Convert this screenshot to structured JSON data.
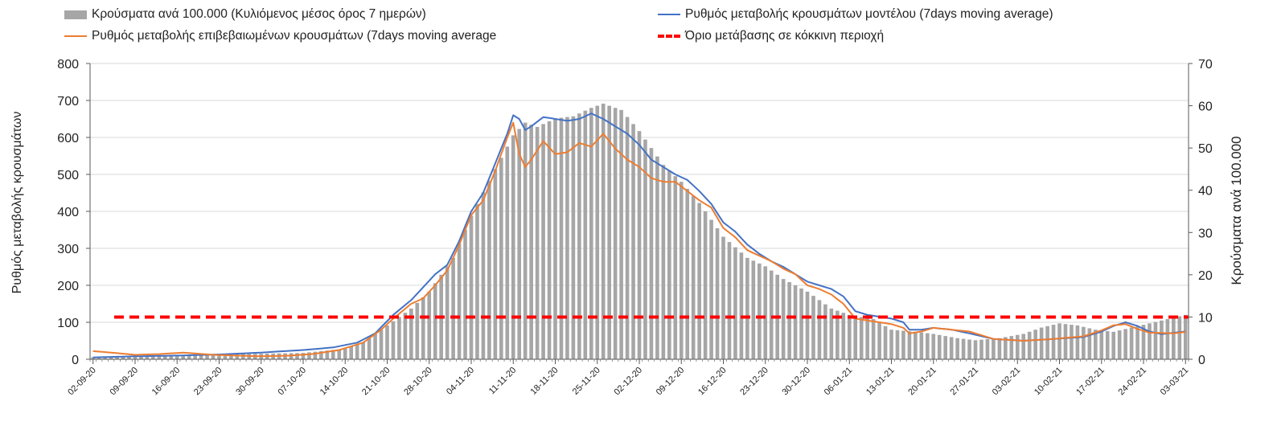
{
  "legend": {
    "bars": "Κρούσματα ανά 100.000 (Κυλιόμενος μέσος όρος 7 ημερών)",
    "model": "Ρυθμός μεταβολής κρουσμάτων μοντέλου (7days moving average)",
    "confirmed": "Ρυθμός μεταβολής επιβεβαιωμένων κρουσμάτων (7days moving average",
    "threshold": "Όριο μετάβασης σε κόκκινη περιοχή"
  },
  "colors": {
    "bars": "#a6a6a6",
    "model": "#4472c4",
    "confirmed": "#ed7d31",
    "threshold": "#ff0000",
    "grid": "#d9d9d9",
    "axis": "#595959"
  },
  "chart_data": {
    "type": "bar+line",
    "title": "",
    "ylabel_left": "Ρυθμός μεταβολής κρουσμάτων",
    "ylabel_right": "Κρούσματα ανά 100.000",
    "ylim_left": [
      0,
      800
    ],
    "ylim_right": [
      0,
      70
    ],
    "left_ticks": [
      0,
      100,
      200,
      300,
      400,
      500,
      600,
      700,
      800
    ],
    "right_ticks": [
      0,
      10,
      20,
      30,
      40,
      50,
      60,
      70
    ],
    "x_start_date": "2020-09-02",
    "n_days": 183,
    "x_tick_labels": [
      "02-09-20",
      "09-09-20",
      "16-09-20",
      "23-09-20",
      "30-09-20",
      "07-10-20",
      "14-10-20",
      "21-10-20",
      "28-10-20",
      "04-11-20",
      "11-11-20",
      "18-11-20",
      "25-11-20",
      "02-12-20",
      "09-12-20",
      "16-12-20",
      "23-12-20",
      "30-12-20",
      "06-01-21",
      "13-01-21",
      "20-01-21",
      "27-01-21",
      "03-02-21",
      "10-02-21",
      "17-02-21",
      "24-02-21",
      "03-03-21"
    ],
    "series": [
      {
        "name": "Κρούσματα ανά 100.000 (Κυλιόμενος μέσος όρος 7 ημερών)",
        "axis": "right",
        "kind": "bar",
        "points": [
          [
            0,
            0.5
          ],
          [
            7,
            0.8
          ],
          [
            14,
            1.0
          ],
          [
            21,
            1.2
          ],
          [
            28,
            1.3
          ],
          [
            35,
            1.5
          ],
          [
            42,
            2.5
          ],
          [
            45,
            4
          ],
          [
            49,
            8
          ],
          [
            53,
            12
          ],
          [
            56,
            16
          ],
          [
            60,
            24
          ],
          [
            63,
            34
          ],
          [
            67,
            45
          ],
          [
            70,
            53
          ],
          [
            72,
            56
          ],
          [
            74,
            55
          ],
          [
            77,
            57
          ],
          [
            80,
            57.5
          ],
          [
            83,
            59.5
          ],
          [
            85,
            60.5
          ],
          [
            88,
            59
          ],
          [
            91,
            54
          ],
          [
            95,
            46
          ],
          [
            98,
            42
          ],
          [
            101,
            37
          ],
          [
            105,
            29
          ],
          [
            109,
            24
          ],
          [
            112,
            22
          ],
          [
            115,
            19
          ],
          [
            119,
            16
          ],
          [
            123,
            12
          ],
          [
            126,
            10.5
          ],
          [
            130,
            9.5
          ],
          [
            133,
            7
          ],
          [
            137,
            6.5
          ],
          [
            140,
            6
          ],
          [
            144,
            5
          ],
          [
            147,
            4.5
          ],
          [
            151,
            5
          ],
          [
            155,
            6
          ],
          [
            158,
            7.5
          ],
          [
            161,
            8.5
          ],
          [
            164,
            8
          ],
          [
            167,
            7
          ],
          [
            170,
            6.5
          ],
          [
            173,
            7.5
          ],
          [
            176,
            8.5
          ],
          [
            179,
            9.5
          ],
          [
            182,
            10.5
          ]
        ]
      },
      {
        "name": "Ρυθμός μεταβολής κρουσμάτων μοντέλου (7days moving average)",
        "axis": "left",
        "kind": "line",
        "points": [
          [
            0,
            5
          ],
          [
            7,
            8
          ],
          [
            14,
            10
          ],
          [
            21,
            13
          ],
          [
            28,
            18
          ],
          [
            35,
            25
          ],
          [
            40,
            32
          ],
          [
            44,
            45
          ],
          [
            47,
            70
          ],
          [
            50,
            120
          ],
          [
            53,
            160
          ],
          [
            55,
            195
          ],
          [
            57,
            230
          ],
          [
            59,
            255
          ],
          [
            61,
            320
          ],
          [
            63,
            400
          ],
          [
            65,
            450
          ],
          [
            67,
            530
          ],
          [
            69,
            610
          ],
          [
            70,
            660
          ],
          [
            71,
            650
          ],
          [
            72,
            620
          ],
          [
            73,
            630
          ],
          [
            75,
            655
          ],
          [
            77,
            650
          ],
          [
            79,
            645
          ],
          [
            81,
            650
          ],
          [
            83,
            665
          ],
          [
            85,
            650
          ],
          [
            87,
            630
          ],
          [
            89,
            610
          ],
          [
            91,
            580
          ],
          [
            93,
            540
          ],
          [
            95,
            520
          ],
          [
            97,
            500
          ],
          [
            99,
            485
          ],
          [
            101,
            455
          ],
          [
            103,
            420
          ],
          [
            105,
            370
          ],
          [
            107,
            345
          ],
          [
            109,
            310
          ],
          [
            111,
            285
          ],
          [
            113,
            265
          ],
          [
            115,
            250
          ],
          [
            117,
            230
          ],
          [
            119,
            210
          ],
          [
            121,
            200
          ],
          [
            123,
            190
          ],
          [
            125,
            170
          ],
          [
            127,
            130
          ],
          [
            129,
            120
          ],
          [
            131,
            115
          ],
          [
            133,
            110
          ],
          [
            135,
            100
          ],
          [
            136,
            80
          ],
          [
            138,
            80
          ],
          [
            140,
            85
          ],
          [
            143,
            80
          ],
          [
            146,
            70
          ],
          [
            150,
            55
          ],
          [
            155,
            50
          ],
          [
            160,
            55
          ],
          [
            165,
            60
          ],
          [
            168,
            75
          ],
          [
            170,
            90
          ],
          [
            172,
            100
          ],
          [
            174,
            90
          ],
          [
            176,
            75
          ],
          [
            178,
            68
          ],
          [
            182,
            75
          ],
          [
            186,
            90
          ],
          [
            190,
            110
          ],
          [
            193,
            130
          ]
        ]
      },
      {
        "name": "Ρυθμός μεταβολής επιβεβαιωμένων κρουσμάτων (7days moving average",
        "axis": "left",
        "kind": "line",
        "points": [
          [
            0,
            22
          ],
          [
            3,
            18
          ],
          [
            7,
            12
          ],
          [
            11,
            14
          ],
          [
            15,
            18
          ],
          [
            20,
            12
          ],
          [
            24,
            10
          ],
          [
            28,
            8
          ],
          [
            33,
            10
          ],
          [
            37,
            15
          ],
          [
            41,
            25
          ],
          [
            45,
            45
          ],
          [
            48,
            80
          ],
          [
            50,
            110
          ],
          [
            53,
            150
          ],
          [
            55,
            165
          ],
          [
            57,
            200
          ],
          [
            59,
            240
          ],
          [
            61,
            310
          ],
          [
            63,
            390
          ],
          [
            65,
            430
          ],
          [
            67,
            510
          ],
          [
            69,
            600
          ],
          [
            70,
            640
          ],
          [
            71,
            555
          ],
          [
            72,
            520
          ],
          [
            73,
            540
          ],
          [
            75,
            590
          ],
          [
            77,
            555
          ],
          [
            79,
            560
          ],
          [
            81,
            585
          ],
          [
            83,
            575
          ],
          [
            85,
            610
          ],
          [
            87,
            570
          ],
          [
            89,
            540
          ],
          [
            91,
            520
          ],
          [
            93,
            490
          ],
          [
            95,
            480
          ],
          [
            97,
            480
          ],
          [
            99,
            455
          ],
          [
            101,
            430
          ],
          [
            103,
            410
          ],
          [
            105,
            355
          ],
          [
            107,
            330
          ],
          [
            109,
            295
          ],
          [
            111,
            280
          ],
          [
            113,
            265
          ],
          [
            115,
            245
          ],
          [
            117,
            230
          ],
          [
            119,
            200
          ],
          [
            121,
            190
          ],
          [
            123,
            175
          ],
          [
            125,
            150
          ],
          [
            127,
            110
          ],
          [
            129,
            105
          ],
          [
            131,
            100
          ],
          [
            133,
            95
          ],
          [
            135,
            85
          ],
          [
            136,
            70
          ],
          [
            138,
            75
          ],
          [
            140,
            85
          ],
          [
            143,
            80
          ],
          [
            146,
            75
          ],
          [
            150,
            55
          ],
          [
            155,
            50
          ],
          [
            160,
            55
          ],
          [
            165,
            62
          ],
          [
            168,
            78
          ],
          [
            170,
            92
          ],
          [
            172,
            95
          ],
          [
            174,
            82
          ],
          [
            176,
            72
          ],
          [
            180,
            70
          ],
          [
            185,
            80
          ],
          [
            189,
            95
          ],
          [
            193,
            112
          ]
        ]
      },
      {
        "name": "Όριο μετάβασης σε κόκκινη περιοχή",
        "axis": "left",
        "kind": "hline",
        "value": 114
      }
    ]
  }
}
